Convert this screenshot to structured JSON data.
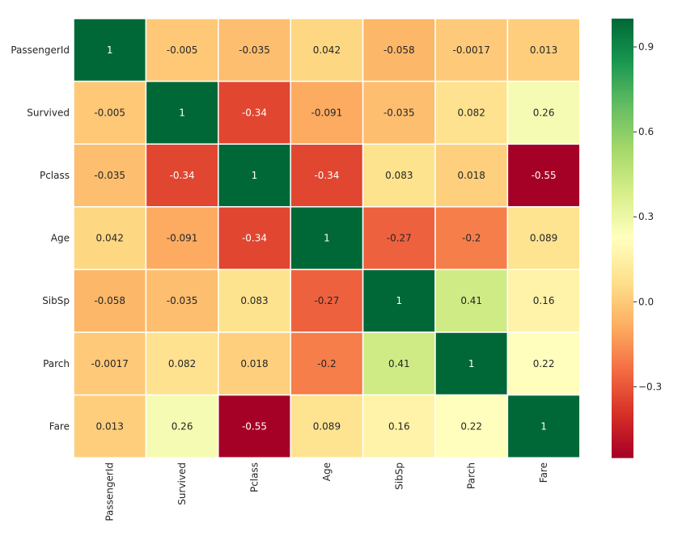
{
  "chart_data": {
    "type": "heatmap",
    "labels": [
      "PassengerId",
      "Survived",
      "Pclass",
      "Age",
      "SibSp",
      "Parch",
      "Fare"
    ],
    "values": [
      [
        1,
        -0.005,
        -0.035,
        0.042,
        -0.058,
        -0.0017,
        0.013
      ],
      [
        -0.005,
        1,
        -0.34,
        -0.091,
        -0.035,
        0.082,
        0.26
      ],
      [
        -0.035,
        -0.34,
        1,
        -0.34,
        0.083,
        0.018,
        -0.55
      ],
      [
        0.042,
        -0.091,
        -0.34,
        1,
        -0.27,
        -0.2,
        0.089
      ],
      [
        -0.058,
        -0.035,
        0.083,
        -0.27,
        1,
        0.41,
        0.16
      ],
      [
        -0.0017,
        0.082,
        0.018,
        -0.2,
        0.41,
        1,
        0.22
      ],
      [
        0.013,
        0.26,
        -0.55,
        0.089,
        0.16,
        0.22,
        1
      ]
    ],
    "display": [
      [
        "1",
        "-0.005",
        "-0.035",
        "0.042",
        "-0.058",
        "-0.0017",
        "0.013"
      ],
      [
        "-0.005",
        "1",
        "-0.34",
        "-0.091",
        "-0.035",
        "0.082",
        "0.26"
      ],
      [
        "-0.035",
        "-0.34",
        "1",
        "-0.34",
        "0.083",
        "0.018",
        "-0.55"
      ],
      [
        "0.042",
        "-0.091",
        "-0.34",
        "1",
        "-0.27",
        "-0.2",
        "0.089"
      ],
      [
        "-0.058",
        "-0.035",
        "0.083",
        "-0.27",
        "1",
        "0.41",
        "0.16"
      ],
      [
        "-0.0017",
        "0.082",
        "0.018",
        "-0.2",
        "0.41",
        "1",
        "0.22"
      ],
      [
        "0.013",
        "0.26",
        "-0.55",
        "0.089",
        "0.16",
        "0.22",
        "1"
      ]
    ],
    "colormap": "RdYlGn",
    "vmin": -0.55,
    "vmax": 1,
    "colorbar_ticks": [
      0.9,
      0.6,
      0.3,
      0.0,
      -0.3
    ],
    "colorbar_tick_labels": [
      "0.9",
      "0.6",
      "0.3",
      "0.0",
      "−0.3"
    ],
    "annotated": true
  }
}
